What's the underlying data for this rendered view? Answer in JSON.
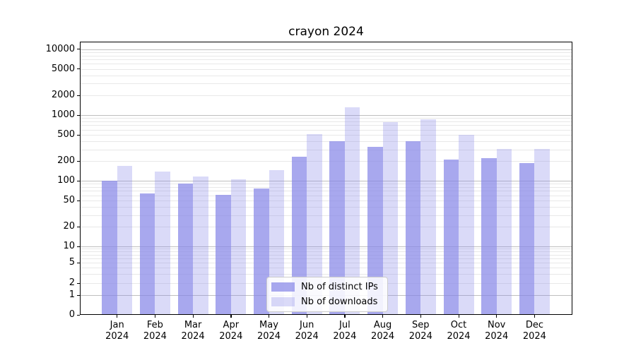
{
  "chart": {
    "title": "crayon 2024"
  },
  "chart_data": {
    "type": "bar",
    "title": "crayon 2024",
    "categories": [
      "Jan",
      "Feb",
      "Mar",
      "Apr",
      "May",
      "Jun",
      "Jul",
      "Aug",
      "Sep",
      "Oct",
      "Nov",
      "Dec"
    ],
    "year_label": "2024",
    "series": [
      {
        "name": "Nb of distinct IPs",
        "css_color": "rgba(135,135,231,0.72)",
        "approx_hex_on_white": "#a9a9ee",
        "values": [
          100,
          64,
          90,
          61,
          76,
          232,
          399,
          326,
          396,
          212,
          221,
          184
        ]
      },
      {
        "name": "Nb of downloads",
        "css_color": "rgba(135,135,231,0.31)",
        "approx_hex_on_white": "#dadaf8",
        "values": [
          170,
          138,
          117,
          105,
          146,
          508,
          1313,
          779,
          853,
          496,
          303,
          303
        ]
      }
    ],
    "xlabel": "",
    "ylabel": "",
    "y_scale": "symlog",
    "y_ticks": [
      0,
      1,
      2,
      5,
      10,
      20,
      50,
      100,
      200,
      500,
      1000,
      2000,
      5000,
      10000
    ],
    "ylim": [
      0,
      12800
    ],
    "grid": true,
    "grid_minor": true,
    "legend_position": "lower center",
    "colors": {
      "major_grid": "#bfbfbf",
      "minor_grid": "#e8e8e8",
      "axis": "#000000",
      "background": "#ffffff"
    }
  }
}
